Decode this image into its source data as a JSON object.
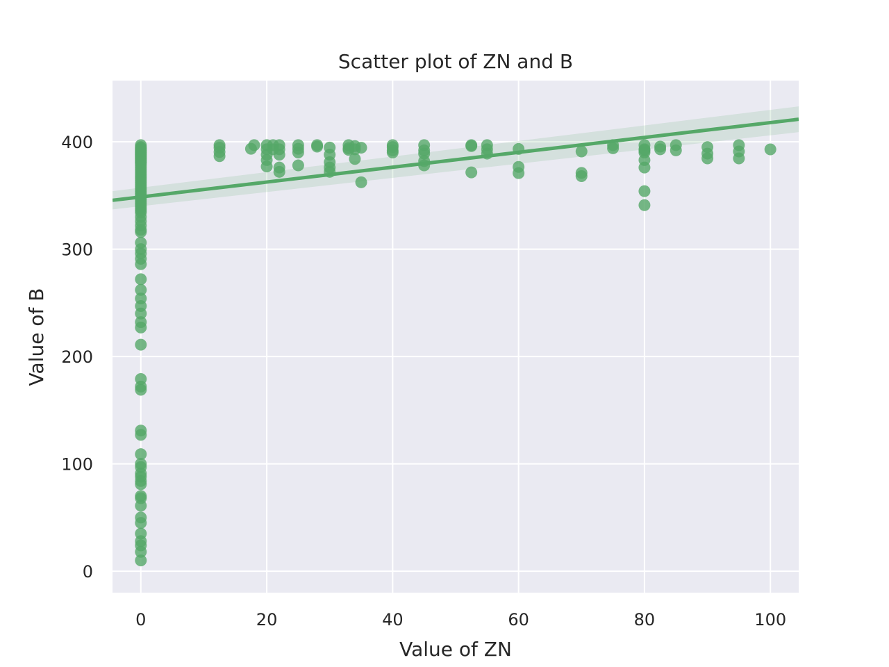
{
  "chart_data": {
    "type": "scatter",
    "title": "Scatter plot of ZN and B",
    "xlabel": "Value of ZN",
    "ylabel": "Value of B",
    "xlim": [
      -4.5,
      104.5
    ],
    "ylim": [
      -20,
      457
    ],
    "xticks": [
      0,
      20,
      40,
      60,
      80,
      100
    ],
    "yticks": [
      0,
      100,
      200,
      300,
      400
    ],
    "grid": true,
    "legend": "none",
    "colors": {
      "background": "#eaeaf2",
      "grid": "#ffffff",
      "points": "#55a868",
      "line": "#55a868",
      "band": "#55a868"
    },
    "regression": {
      "x": [
        -4.5,
        104.5
      ],
      "y": [
        345.5,
        421.0
      ],
      "ci_lower": [
        337.0,
        409.0
      ],
      "ci_upper": [
        354.0,
        433.0
      ]
    },
    "series": [
      {
        "x": [
          0,
          0,
          0,
          0,
          0,
          0,
          0,
          0,
          0,
          0,
          0,
          0,
          0,
          0,
          0,
          0,
          0,
          0,
          0,
          0,
          0,
          0,
          0,
          0,
          0,
          0,
          0,
          0,
          0,
          0,
          0,
          0,
          0,
          0,
          0,
          0,
          0,
          0,
          0,
          0,
          0,
          0,
          0,
          0,
          0,
          0,
          0,
          0,
          0,
          0,
          0,
          0,
          0,
          0,
          0,
          0,
          0,
          0,
          0,
          0,
          0,
          0,
          0,
          0,
          0,
          0,
          0,
          0,
          0,
          0,
          0,
          0,
          0,
          0,
          0,
          0,
          0,
          0,
          0,
          0,
          12.5,
          12.5,
          12.5,
          12.5,
          17.5,
          18,
          20,
          20,
          20,
          20,
          20,
          21,
          21,
          22,
          22,
          22,
          22,
          22,
          25,
          25,
          25,
          25,
          28,
          28,
          30,
          30,
          30,
          30,
          30,
          33,
          33,
          33,
          34,
          34,
          34,
          35,
          35,
          40,
          40,
          40,
          40,
          45,
          45,
          45,
          45,
          45,
          52.5,
          52.5,
          52.5,
          55,
          55,
          55,
          60,
          60,
          60,
          70,
          70,
          70,
          75,
          75,
          80,
          80,
          80,
          80,
          80,
          80,
          80,
          80,
          82.5,
          82.5,
          85,
          85,
          90,
          90,
          90,
          95,
          95,
          95,
          100
        ],
        "y": [
          396.9,
          395,
          394,
          393,
          392,
          391,
          390,
          389,
          388,
          387,
          386,
          385,
          384,
          383,
          382,
          381,
          380,
          378,
          376,
          374,
          372,
          370,
          368,
          366,
          364,
          362,
          360,
          358,
          356,
          354,
          352,
          350,
          348,
          346,
          344,
          342,
          340,
          338,
          336,
          334,
          330,
          326,
          322,
          318,
          316,
          306,
          300,
          296,
          291,
          286,
          272,
          262,
          254,
          247,
          240,
          232,
          227,
          211,
          179,
          172,
          169,
          131,
          127,
          109,
          100,
          97,
          91,
          88,
          84,
          81,
          70,
          68,
          61,
          50,
          45,
          35,
          28,
          24,
          18,
          10,
          396.9,
          394.5,
          390.5,
          386.6,
          393.5,
          396.9,
          396.9,
          393,
          388,
          383,
          377,
          396.9,
          393,
          396.9,
          393,
          388,
          376,
          372,
          396.9,
          393.5,
          390,
          378,
          396.9,
          395.5,
          394.6,
          388,
          381,
          376,
          372,
          396.9,
          394,
          392.5,
          396,
          393,
          384,
          394.5,
          362.3,
          396.9,
          395,
          392,
          390,
          396.9,
          392,
          389,
          382,
          378,
          396.9,
          396,
          371.5,
          396.9,
          393,
          389,
          393.3,
          376.6,
          370.8,
          391,
          371,
          368,
          396.9,
          394,
          396.9,
          393,
          390,
          383,
          376,
          354,
          341,
          392,
          395.5,
          393,
          396.9,
          392,
          395,
          389,
          384.5,
          396.9,
          391,
          384.5,
          392.9
        ]
      }
    ]
  }
}
